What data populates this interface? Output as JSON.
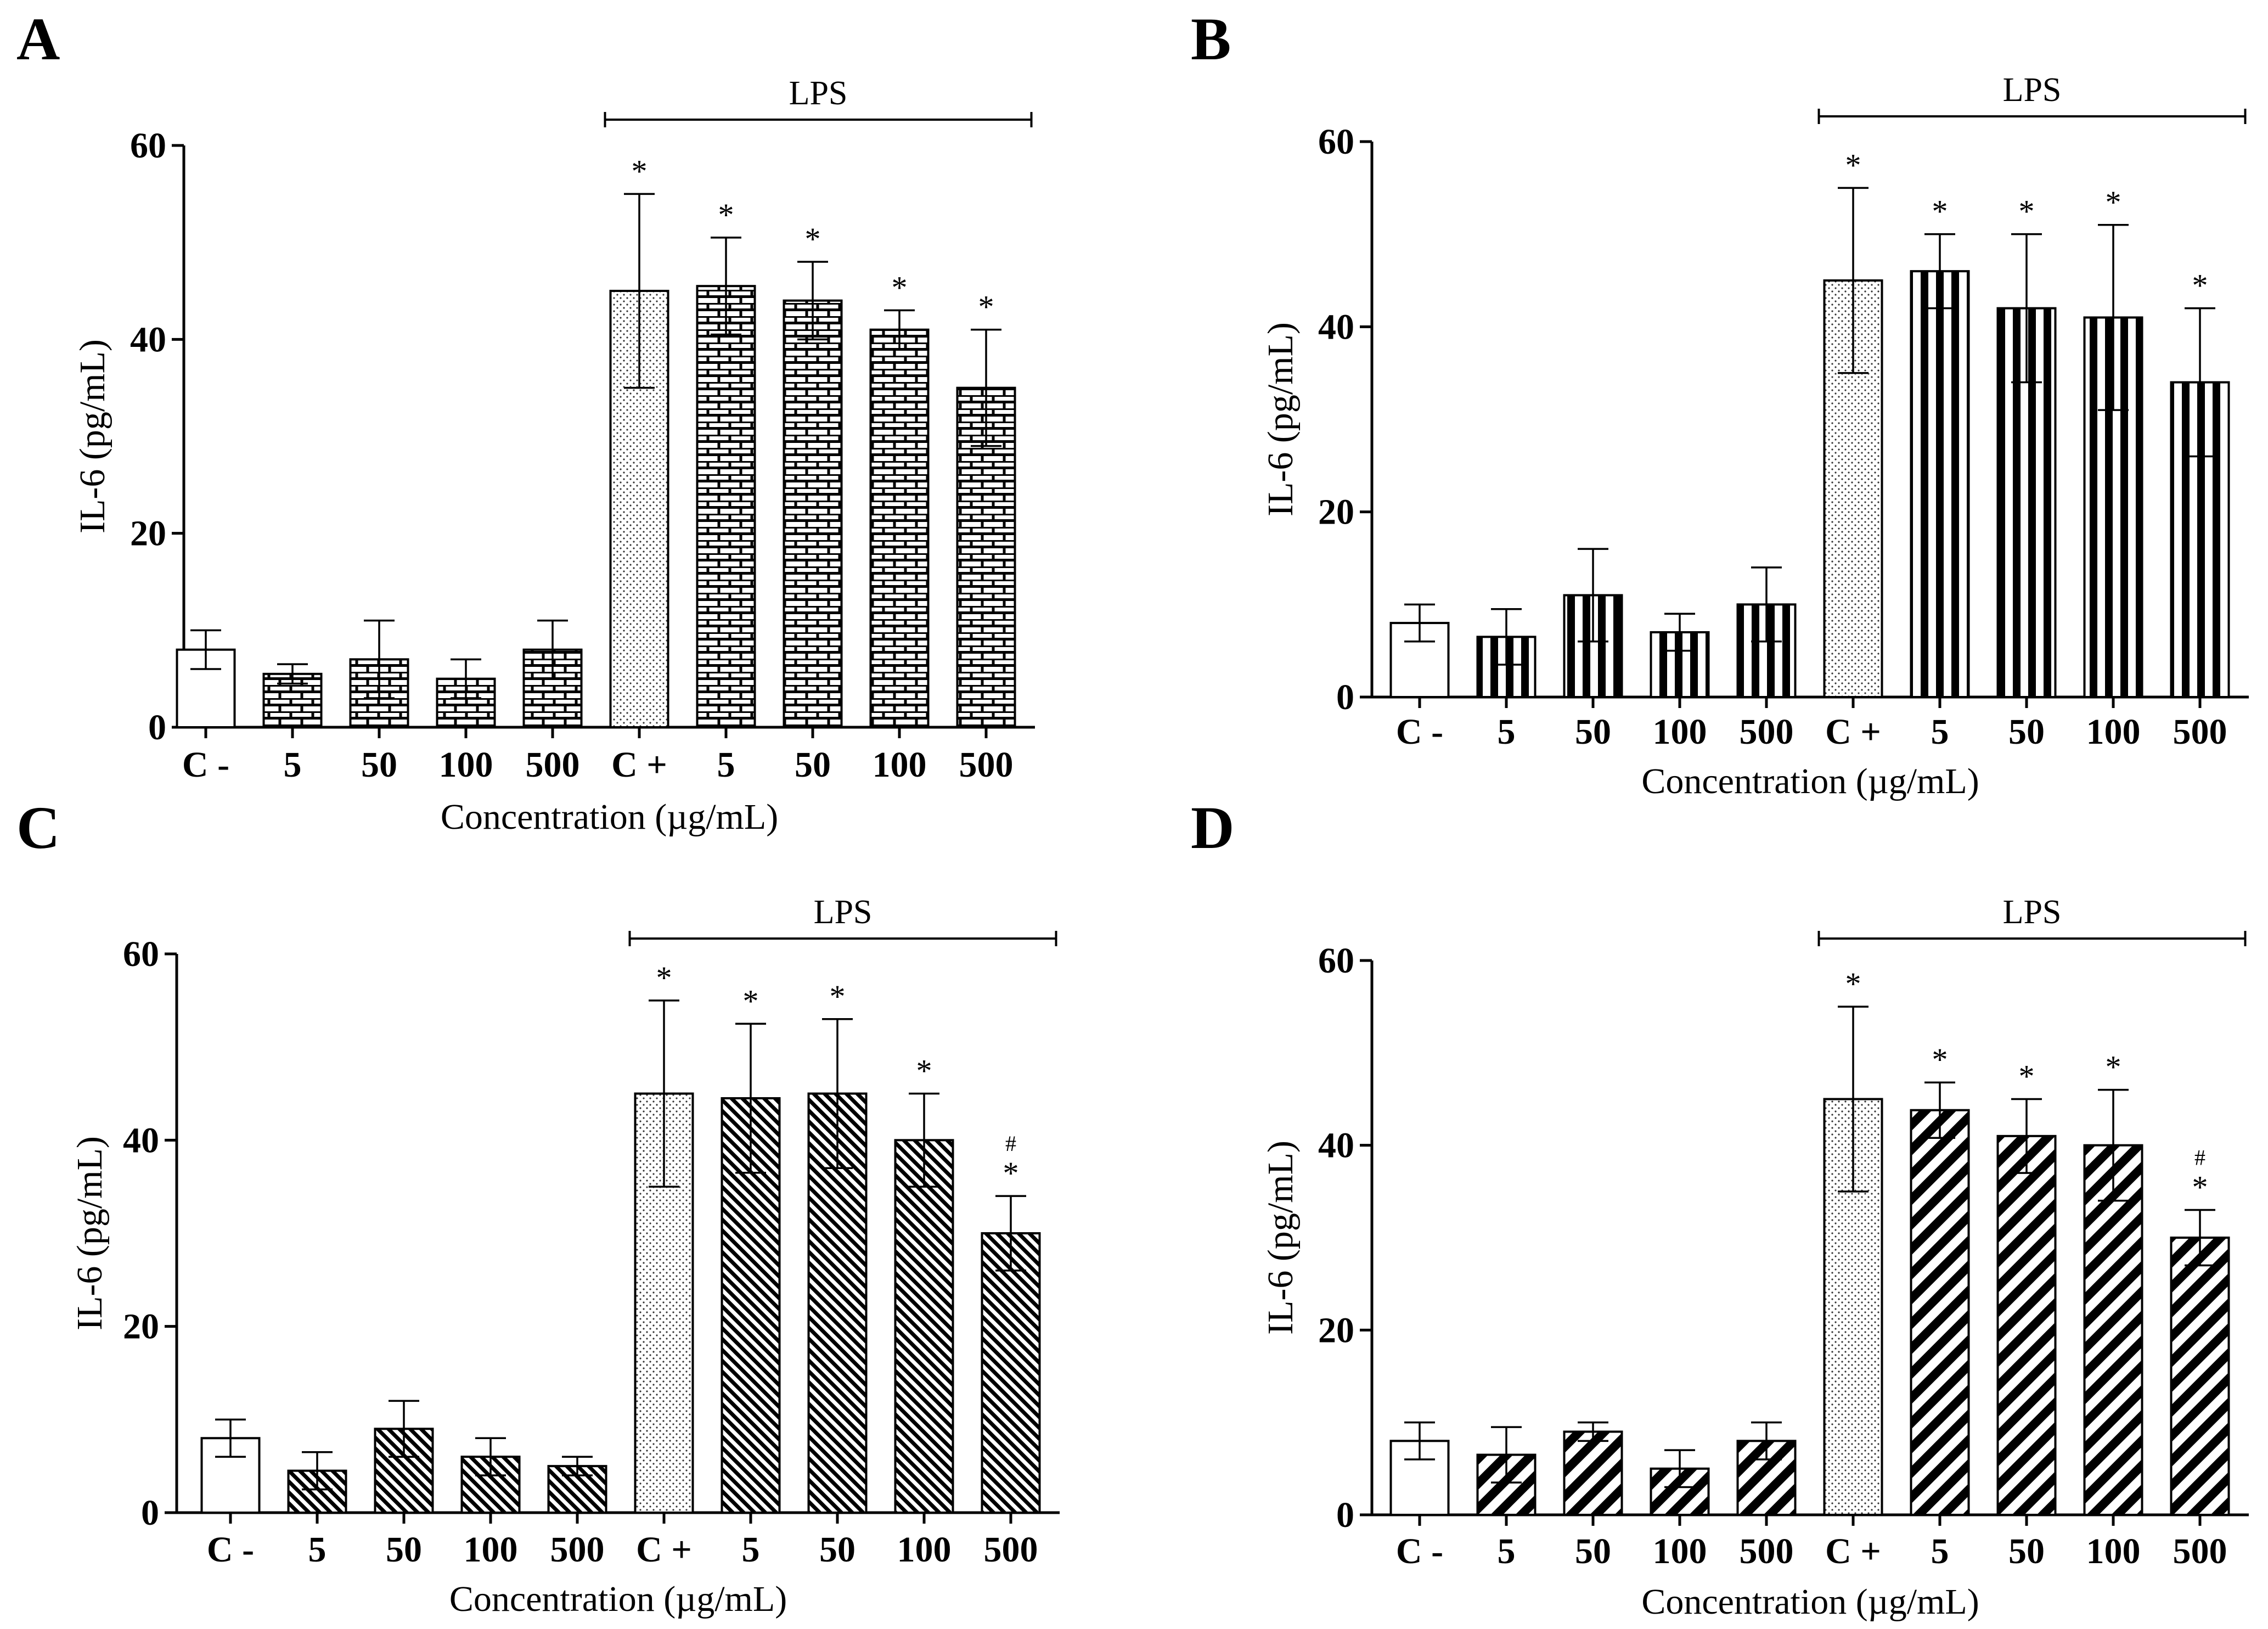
{
  "chart_data": [
    {
      "panel": "A",
      "type": "bar",
      "categories": [
        "C -",
        "5",
        "50",
        "100",
        "500",
        "C +",
        "5",
        "50",
        "100",
        "500"
      ],
      "values": [
        8,
        5.5,
        7,
        5,
        8,
        45,
        45.5,
        44,
        41,
        35
      ],
      "errors": [
        2,
        1,
        4,
        2,
        3,
        10,
        5,
        4,
        2,
        6
      ],
      "patterns": [
        "none",
        "brick",
        "brick",
        "brick",
        "brick",
        "dots",
        "brick",
        "brick",
        "brick",
        "brick"
      ],
      "significance": [
        "",
        "",
        "",
        "",
        "",
        "*",
        "*",
        "*",
        "*",
        "*"
      ],
      "hash_marks": [
        "",
        "",
        "",
        "",
        "",
        "",
        "",
        "",
        "",
        ""
      ],
      "ylabel": "IL-6 (pg/mL)",
      "xlabel": "Concentration (µg/mL)",
      "ylim": [
        0,
        60
      ],
      "yticks": [
        "0",
        "20",
        "40",
        "60"
      ],
      "bracket_label": "LPS",
      "bracket_range": [
        5,
        9
      ],
      "grid": false
    },
    {
      "panel": "B",
      "type": "bar",
      "categories": [
        "C -",
        "5",
        "50",
        "100",
        "500",
        "C +",
        "5",
        "50",
        "100",
        "500"
      ],
      "values": [
        8,
        6.5,
        11,
        7,
        10,
        45,
        46,
        42,
        41,
        34
      ],
      "errors": [
        2,
        3,
        5,
        2,
        4,
        10,
        4,
        8,
        10,
        8
      ],
      "patterns": [
        "none",
        "vstripes",
        "vstripes",
        "vstripes",
        "vstripes",
        "dots",
        "vstripes",
        "vstripes",
        "vstripes",
        "vstripes"
      ],
      "significance": [
        "",
        "",
        "",
        "",
        "",
        "*",
        "*",
        "*",
        "*",
        "*"
      ],
      "hash_marks": [
        "",
        "",
        "",
        "",
        "",
        "",
        "",
        "",
        "",
        ""
      ],
      "ylabel": "IL-6 (pg/mL)",
      "xlabel": "Concentration (µg/mL)",
      "ylim": [
        0,
        60
      ],
      "yticks": [
        "0",
        "20",
        "40",
        "60"
      ],
      "bracket_label": "LPS",
      "bracket_range": [
        5,
        9
      ],
      "grid": false
    },
    {
      "panel": "C",
      "type": "bar",
      "categories": [
        "C -",
        "5",
        "50",
        "100",
        "500",
        "C +",
        "5",
        "50",
        "100",
        "500"
      ],
      "values": [
        8,
        4.5,
        9,
        6,
        5,
        45,
        44.5,
        45,
        40,
        30
      ],
      "errors": [
        2,
        2,
        3,
        2,
        1,
        10,
        8,
        8,
        5,
        4
      ],
      "patterns": [
        "none",
        "fine-diag",
        "fine-diag",
        "fine-diag",
        "fine-diag",
        "dots",
        "fine-diag",
        "fine-diag",
        "fine-diag",
        "fine-diag"
      ],
      "significance": [
        "",
        "",
        "",
        "",
        "",
        "*",
        "*",
        "*",
        "*",
        "*"
      ],
      "hash_marks": [
        "",
        "",
        "",
        "",
        "",
        "",
        "",
        "",
        "",
        "#"
      ],
      "ylabel": "IL-6 (pg/mL)",
      "xlabel": "Concentration (µg/mL)",
      "ylim": [
        0,
        60
      ],
      "yticks": [
        "0",
        "20",
        "40",
        "60"
      ],
      "bracket_label": "LPS",
      "bracket_range": [
        5,
        9
      ],
      "grid": false
    },
    {
      "panel": "D",
      "type": "bar",
      "categories": [
        "C -",
        "5",
        "50",
        "100",
        "500",
        "C +",
        "5",
        "50",
        "100",
        "500"
      ],
      "values": [
        8,
        6.5,
        9,
        5,
        8,
        45,
        43.8,
        41,
        40,
        30
      ],
      "errors": [
        2,
        3,
        1,
        2,
        2,
        10,
        3,
        4,
        6,
        3
      ],
      "patterns": [
        "none",
        "thick-diag",
        "thick-diag",
        "thick-diag",
        "thick-diag",
        "dots",
        "thick-diag",
        "thick-diag",
        "thick-diag",
        "thick-diag"
      ],
      "significance": [
        "",
        "",
        "",
        "",
        "",
        "*",
        "*",
        "*",
        "*",
        "*"
      ],
      "hash_marks": [
        "",
        "",
        "",
        "",
        "",
        "",
        "",
        "",
        "",
        "#"
      ],
      "ylabel": "IL-6 (pg/mL)",
      "xlabel": "Concentration (µg/mL)",
      "ylim": [
        0,
        60
      ],
      "yticks": [
        "0",
        "20",
        "40",
        "60"
      ],
      "bracket_label": "LPS",
      "bracket_range": [
        5,
        9
      ],
      "grid": false
    }
  ]
}
